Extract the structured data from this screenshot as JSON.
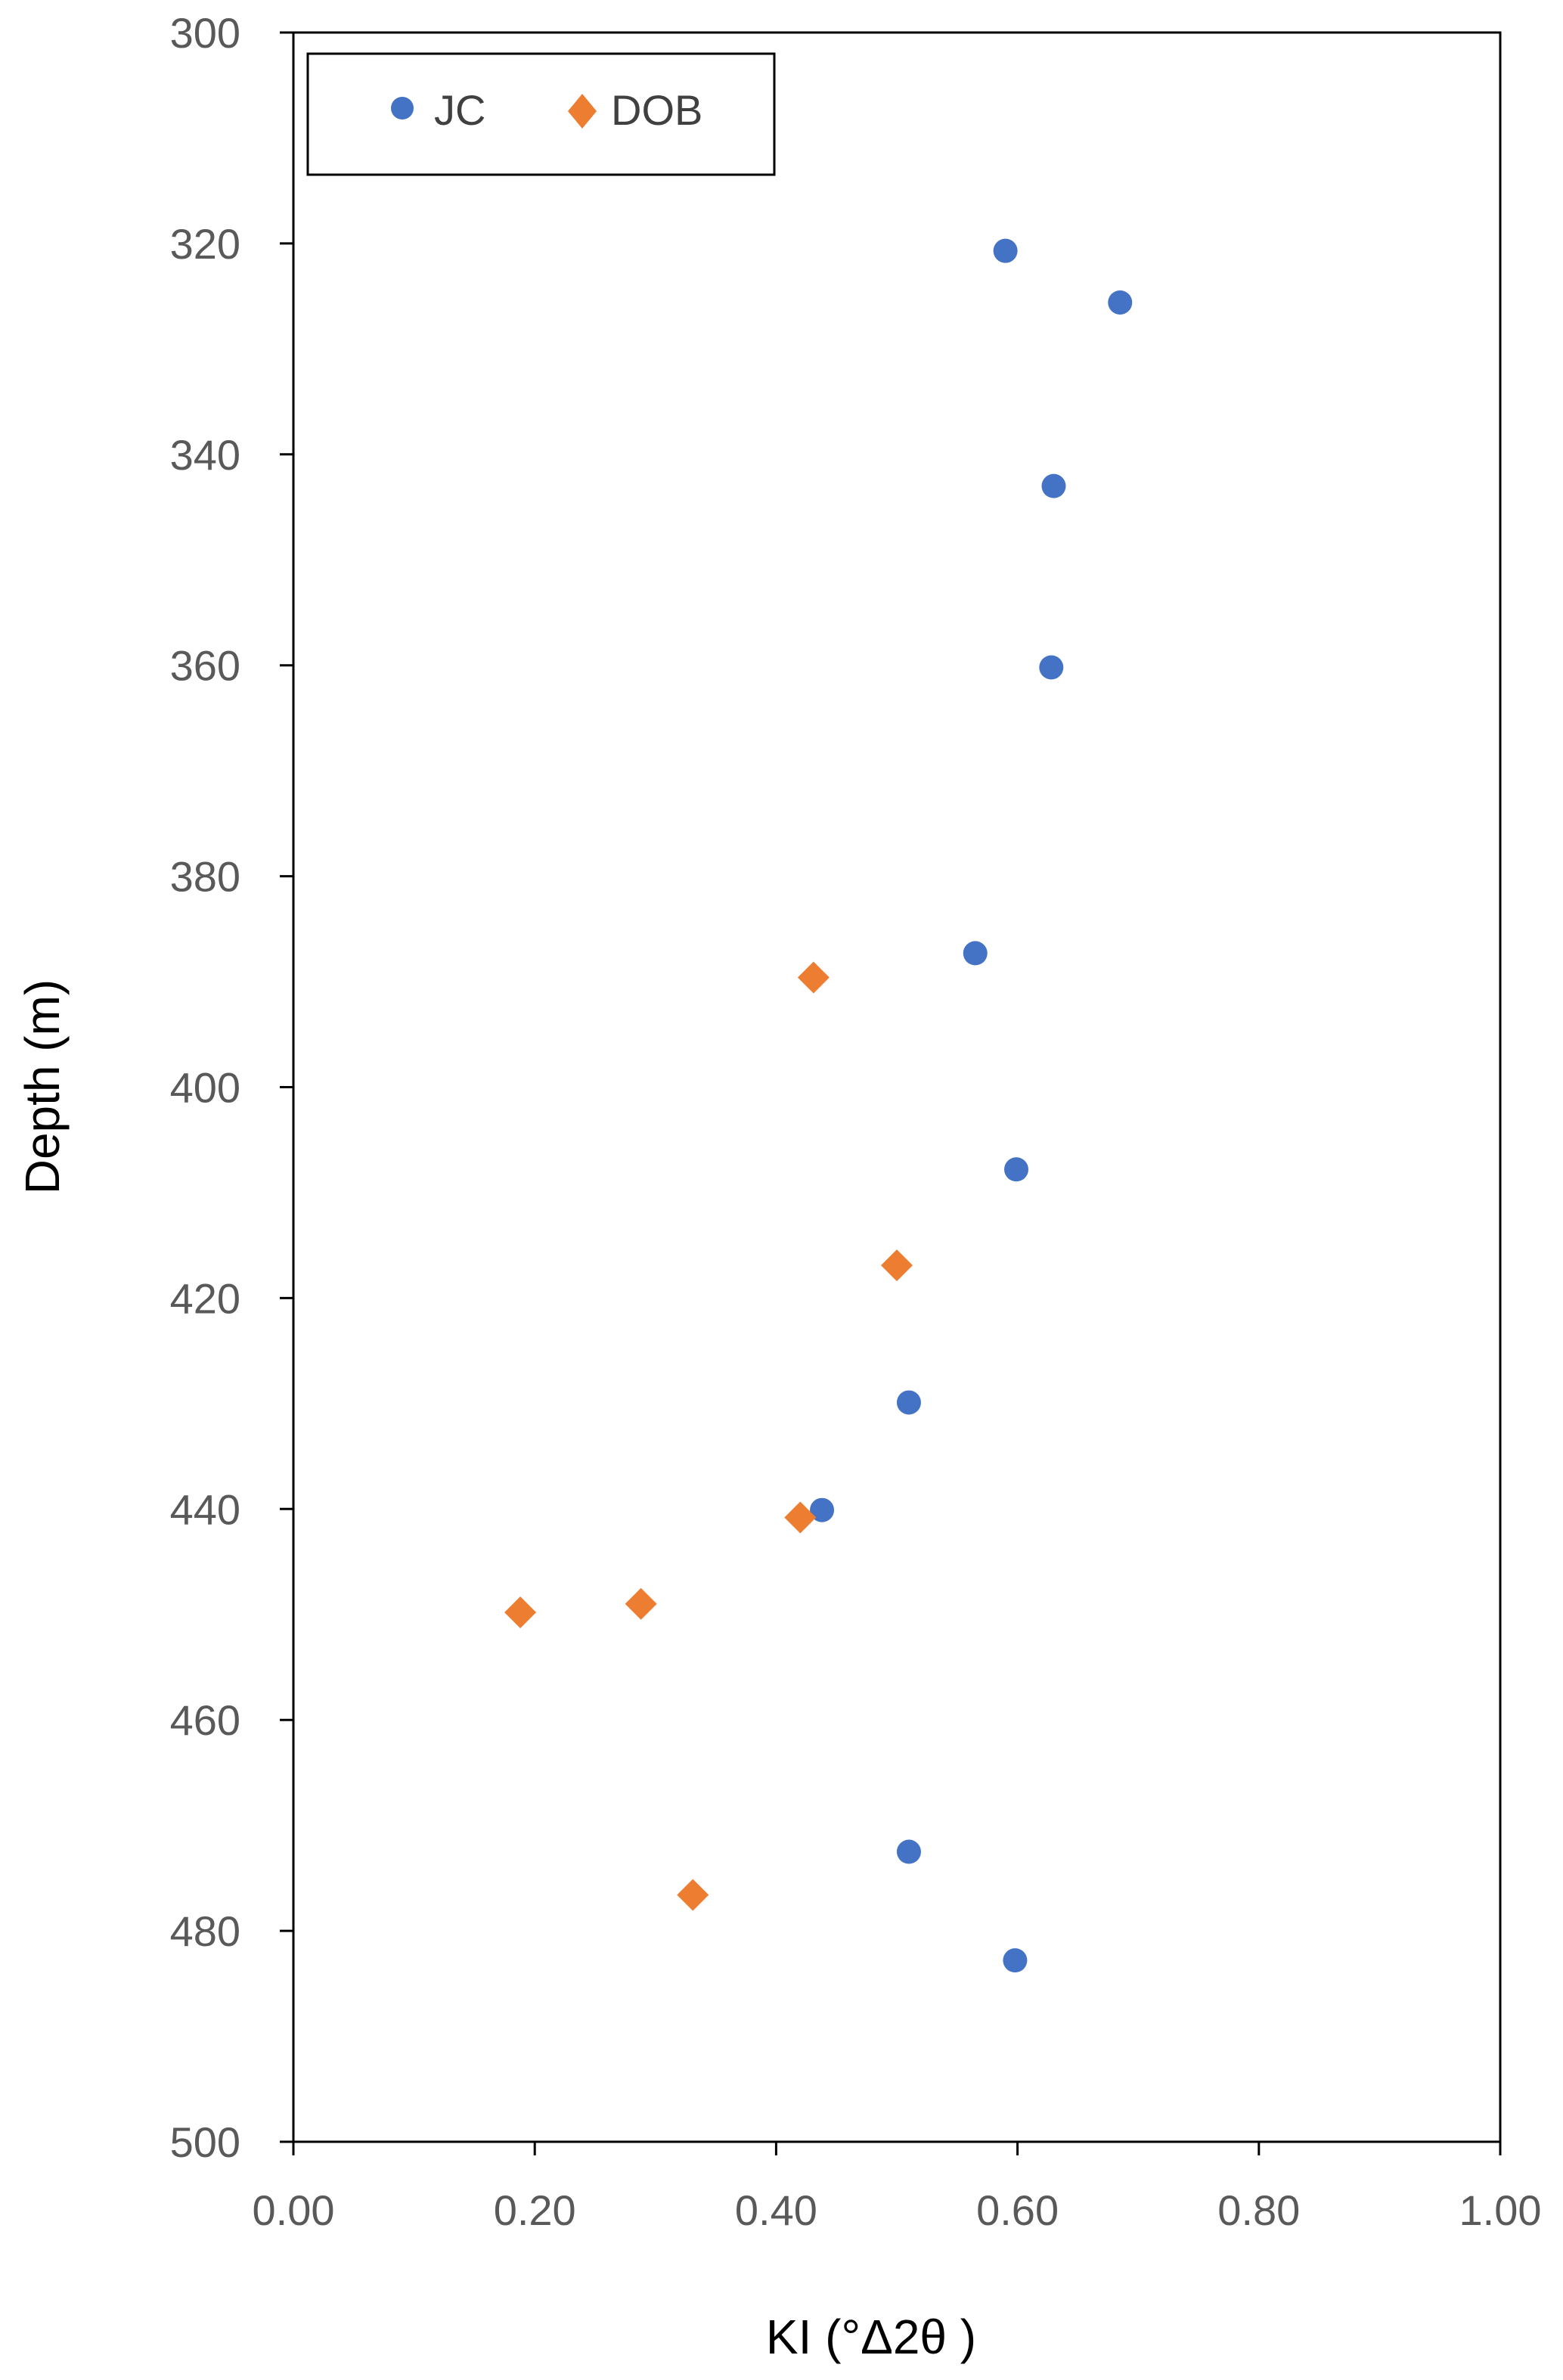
{
  "chart_data": {
    "type": "scatter",
    "xlabel": "KI (°Δ2θ )",
    "ylabel": "Depth (m)",
    "xlim": [
      0,
      1
    ],
    "ylim": [
      300,
      500
    ],
    "y_inverted": true,
    "x_ticks": [
      "0.00",
      "0.20",
      "0.40",
      "0.60",
      "0.80",
      "1.00"
    ],
    "y_ticks": [
      "300",
      "320",
      "340",
      "360",
      "380",
      "400",
      "420",
      "440",
      "460",
      "480",
      "500"
    ],
    "grid": false,
    "legend": "top-left",
    "series": [
      {
        "name": "JC",
        "marker": "circle",
        "color": "#4472C4",
        "points": [
          {
            "x": 0.59,
            "y": 320.7
          },
          {
            "x": 0.685,
            "y": 325.6
          },
          {
            "x": 0.63,
            "y": 343.0
          },
          {
            "x": 0.628,
            "y": 360.2
          },
          {
            "x": 0.565,
            "y": 387.3
          },
          {
            "x": 0.599,
            "y": 407.8
          },
          {
            "x": 0.51,
            "y": 429.9
          },
          {
            "x": 0.438,
            "y": 440.1
          },
          {
            "x": 0.51,
            "y": 472.5
          },
          {
            "x": 0.598,
            "y": 482.8
          }
        ]
      },
      {
        "name": "DOB",
        "marker": "diamond",
        "color": "#ED7D31",
        "points": [
          {
            "x": 0.431,
            "y": 389.6
          },
          {
            "x": 0.5,
            "y": 416.9
          },
          {
            "x": 0.42,
            "y": 440.8
          },
          {
            "x": 0.288,
            "y": 449.0
          },
          {
            "x": 0.188,
            "y": 449.8
          },
          {
            "x": 0.331,
            "y": 476.6
          }
        ]
      }
    ]
  }
}
